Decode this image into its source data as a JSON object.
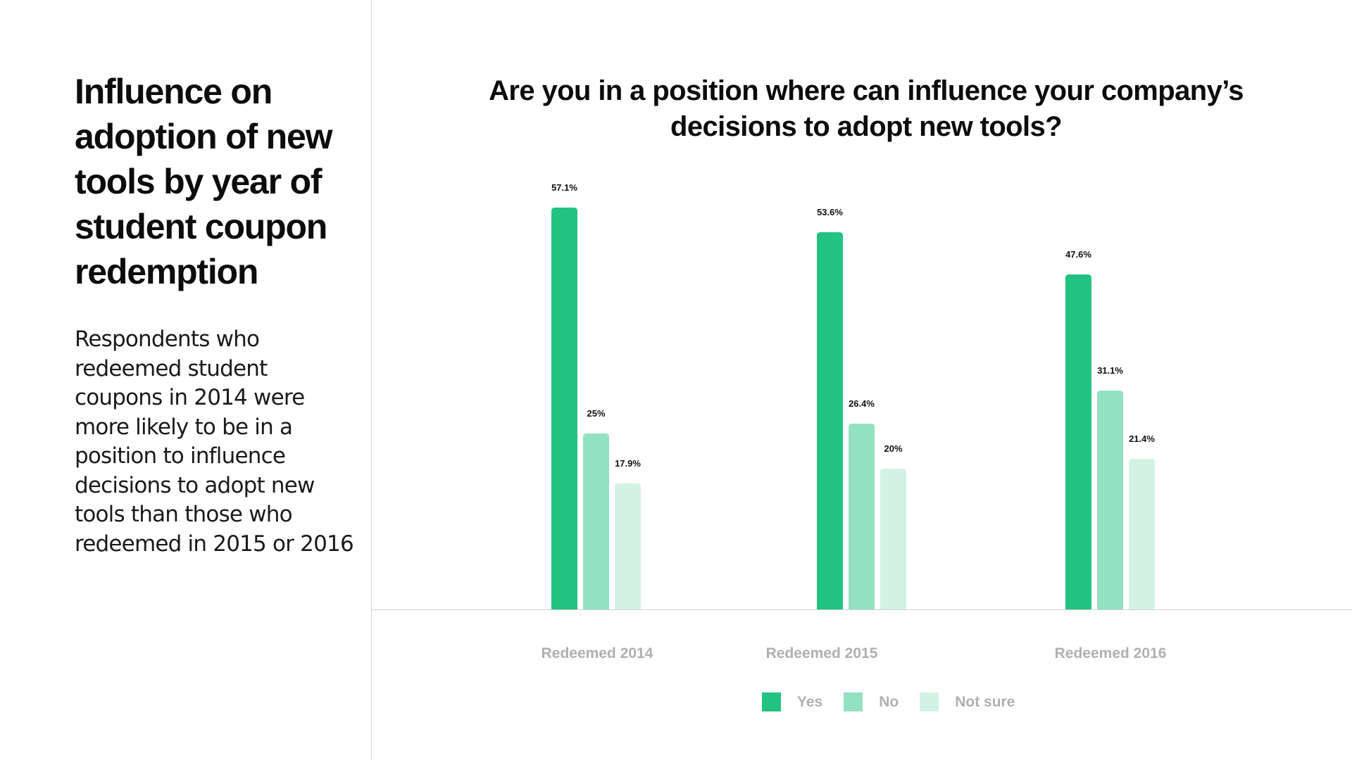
{
  "sidebar": {
    "title": "Influence on adoption of new tools by year of student coupon redemption",
    "description": "Respondents who redeemed student coupons in 2014 were more likely to be in a position to influence decisions to adopt new tools than those who redeemed in 2015 or 2016"
  },
  "chart_data": {
    "type": "bar",
    "title": "Are you in a position where can influence your company’s decisions to adopt new tools?",
    "xlabel": "",
    "ylabel": "",
    "categories": [
      "Redeemed 2014",
      "Redeemed 2015",
      "Redeemed 2016"
    ],
    "series": [
      {
        "name": "Yes",
        "values": [
          57.1,
          53.6,
          47.6
        ],
        "labels": [
          "57.1%",
          "53.6%",
          "47.6%"
        ],
        "color": "#22c380"
      },
      {
        "name": "No",
        "values": [
          25,
          26.4,
          31.1
        ],
        "labels": [
          "25%",
          "26.4%",
          "31.1%"
        ],
        "color": "#93e1c1"
      },
      {
        "name": "Not sure",
        "values": [
          17.9,
          20,
          21.4
        ],
        "labels": [
          "17.9%",
          "20%",
          "21.4%"
        ],
        "color": "#d3f2e4"
      }
    ],
    "ylim": [
      0,
      57.1
    ],
    "grid": false,
    "legend_position": "bottom-center",
    "colors": {
      "baseline": "#d0d0d0",
      "category_label": "#b0b0b0",
      "value_label": "#111111"
    }
  }
}
